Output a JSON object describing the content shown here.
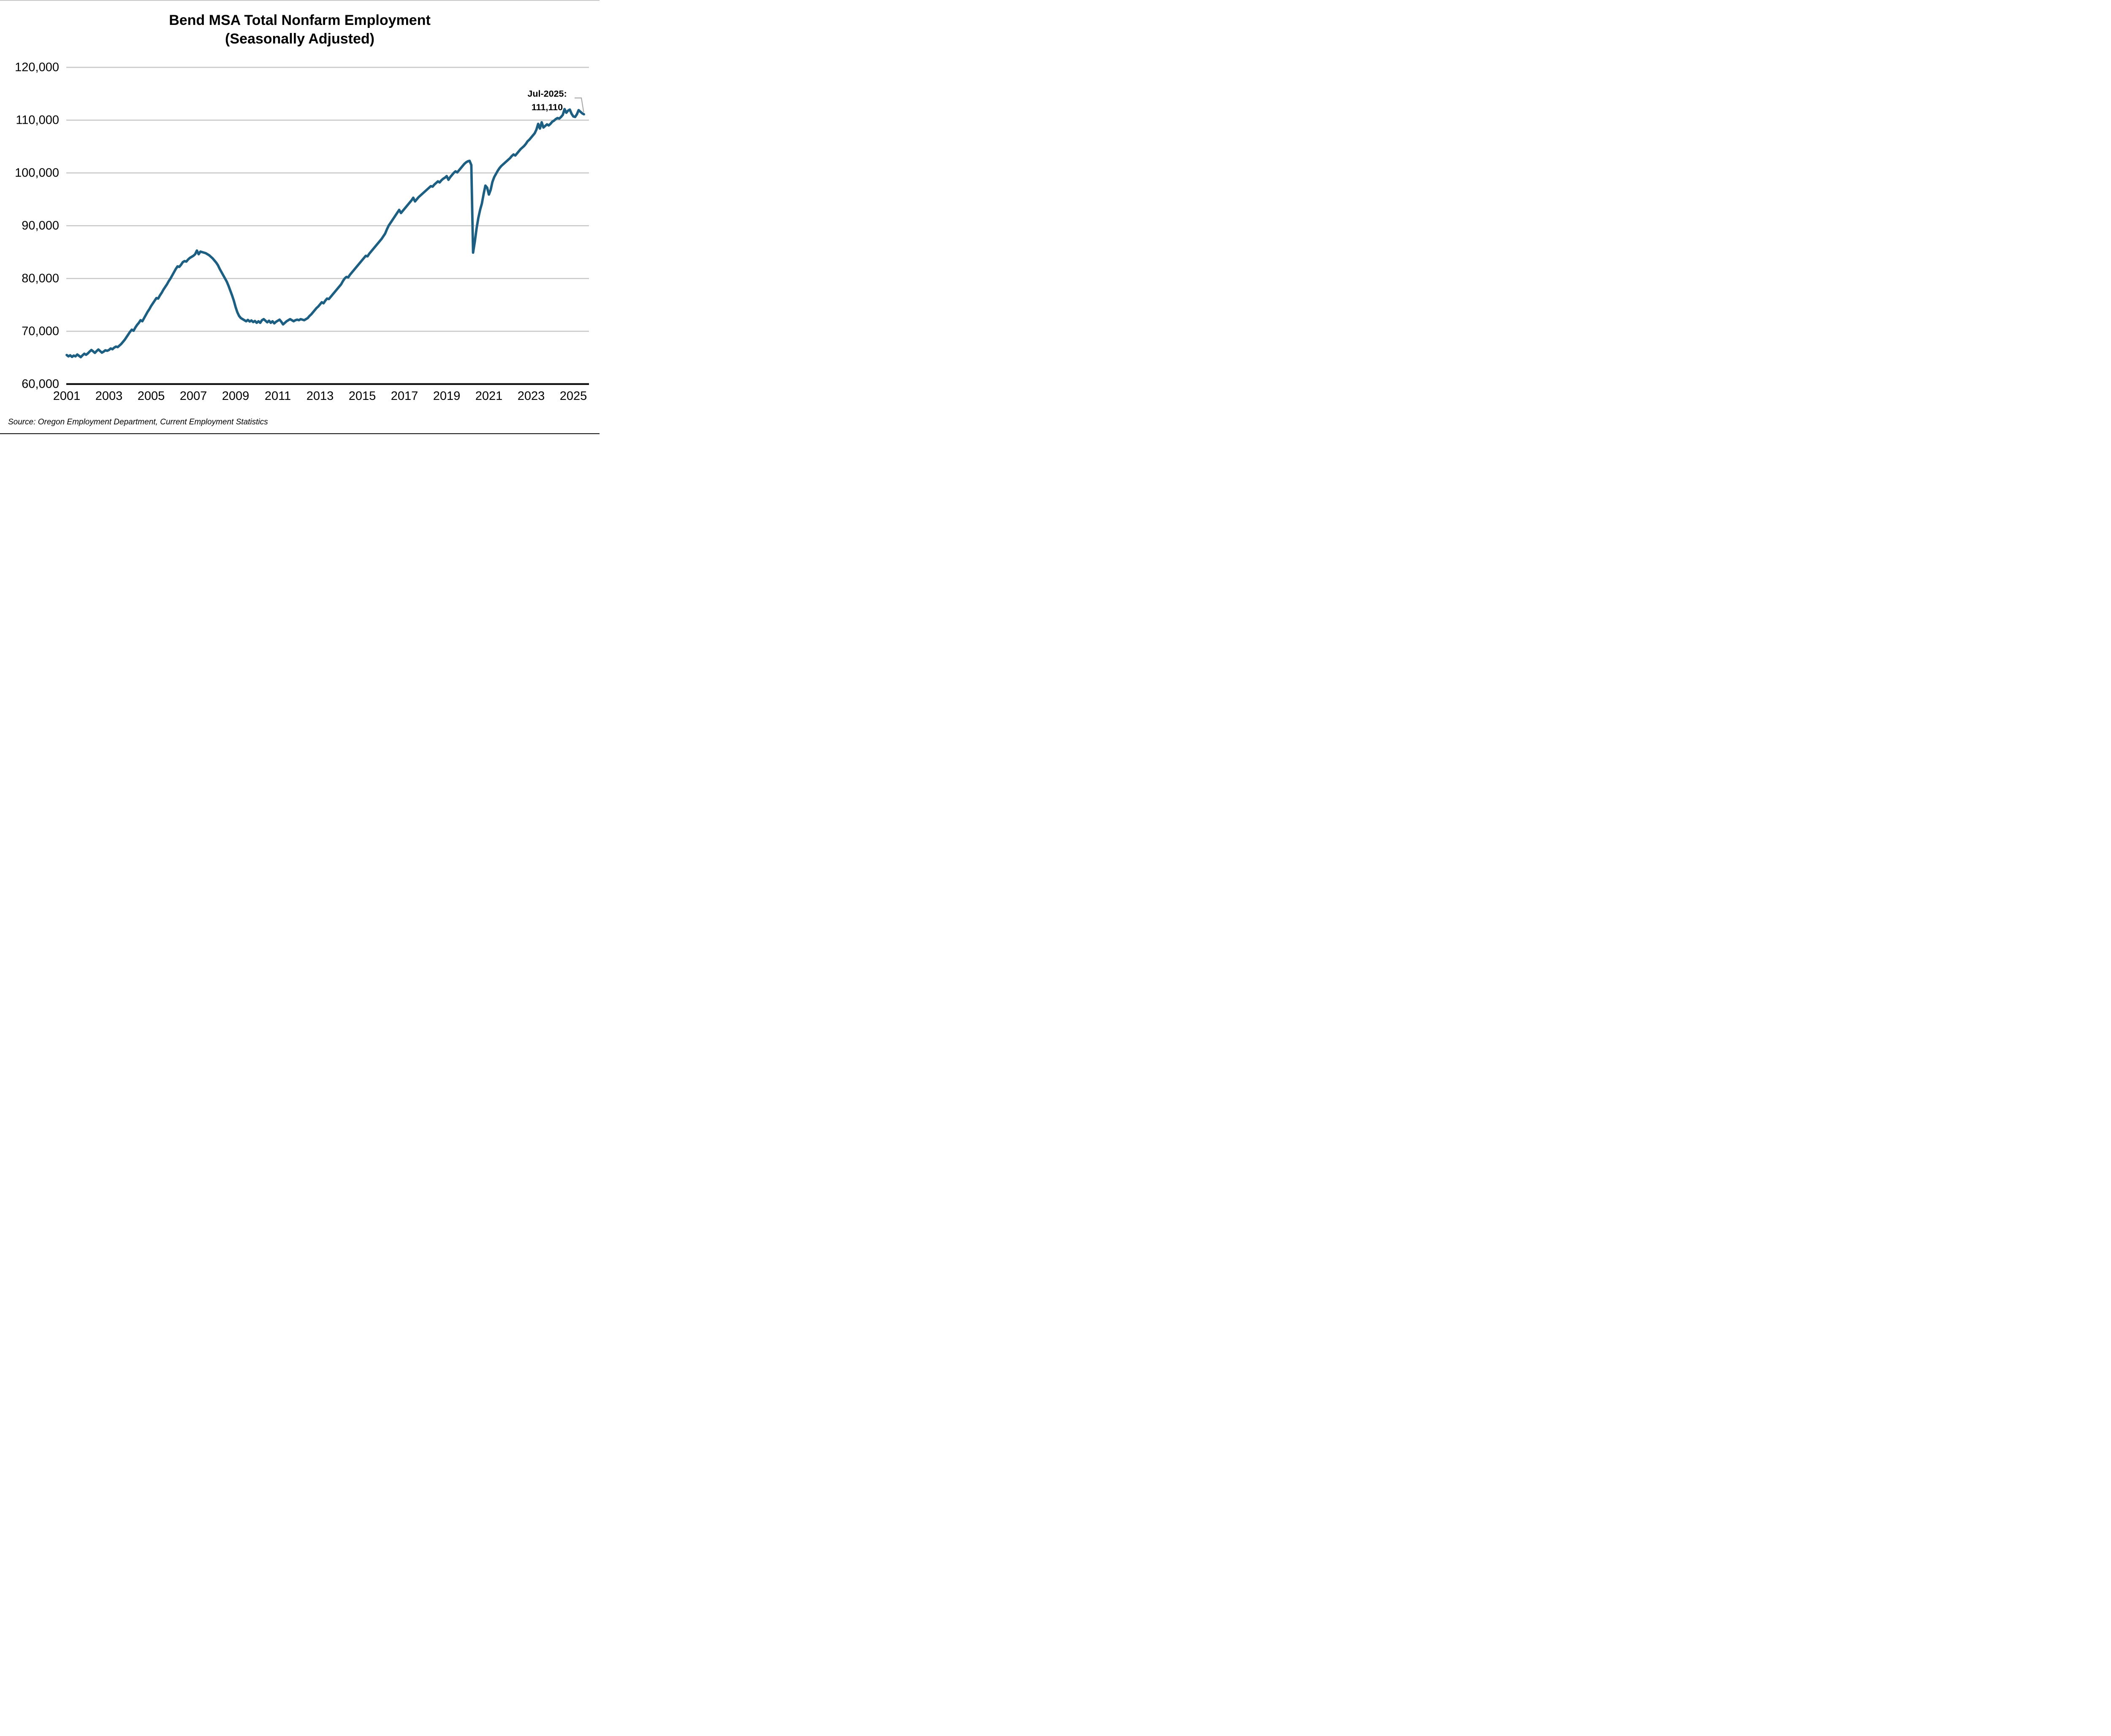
{
  "header": {
    "title_line1": "Bend MSA Total Nonfarm Employment",
    "title_line2": "(Seasonally Adjusted)"
  },
  "annotation": {
    "line1": "Jul-2025:",
    "line2": "111,110"
  },
  "source": {
    "text": "Source: Oregon Employment Department, Current Employment Statistics"
  },
  "axes": {
    "y_ticks": [
      "120,000",
      "110,000",
      "100,000",
      "90,000",
      "80,000",
      "70,000",
      "60,000"
    ],
    "y_tick_values": [
      120000,
      110000,
      100000,
      90000,
      80000,
      70000,
      60000
    ],
    "x_ticks": [
      "2001",
      "2003",
      "2005",
      "2007",
      "2009",
      "2011",
      "2013",
      "2015",
      "2017",
      "2019",
      "2021",
      "2023",
      "2025"
    ],
    "x_tick_years": [
      2001,
      2003,
      2005,
      2007,
      2009,
      2011,
      2013,
      2015,
      2017,
      2019,
      2021,
      2023,
      2025
    ]
  },
  "colors": {
    "line": "#1d5f82",
    "gridline": "#c6c6c6",
    "axis": "#000000",
    "leader": "#a8a8a8",
    "text": "#000000"
  },
  "chart_data": {
    "type": "line",
    "title": "Bend MSA Total Nonfarm Employment (Seasonally Adjusted)",
    "xlabel": "",
    "ylabel": "",
    "series_name": "Total nonfarm employment, seasonally adjusted",
    "frequency": "monthly",
    "x_start_year": 2001,
    "x_start_month": 1,
    "x_end_year": 2025,
    "x_end_month": 7,
    "xlim": [
      2001,
      2025.75
    ],
    "ylim": [
      60000,
      120000
    ],
    "grid": "horizontal",
    "legend": "none",
    "last_point_label": "Jul-2025: 111,110",
    "last_point_value": 111110,
    "values": [
      65500,
      65250,
      65450,
      65150,
      65400,
      65250,
      65600,
      65350,
      65100,
      65450,
      65750,
      65550,
      65800,
      66150,
      66450,
      66200,
      65900,
      66250,
      66550,
      66250,
      65950,
      66150,
      66400,
      66300,
      66450,
      66750,
      66600,
      66900,
      67100,
      67000,
      67300,
      67600,
      68000,
      68400,
      68900,
      69400,
      69900,
      70300,
      70100,
      70700,
      71200,
      71600,
      72100,
      71900,
      72500,
      73100,
      73700,
      74200,
      74800,
      75300,
      75800,
      76300,
      76200,
      76800,
      77300,
      77900,
      78400,
      78900,
      79500,
      80000,
      80600,
      81200,
      81800,
      82300,
      82200,
      82600,
      83100,
      83300,
      83200,
      83600,
      83900,
      84100,
      84300,
      84600,
      85300,
      84600,
      85100,
      85000,
      84900,
      84800,
      84600,
      84400,
      84100,
      83800,
      83400,
      83000,
      82500,
      81800,
      81200,
      80600,
      80000,
      79400,
      78600,
      77700,
      76800,
      75800,
      74600,
      73600,
      72900,
      72500,
      72300,
      72100,
      71900,
      72150,
      71850,
      72050,
      71750,
      71950,
      71600,
      71900,
      71600,
      72100,
      72300,
      72000,
      71700,
      72000,
      71600,
      71900,
      71500,
      71800,
      72000,
      72200,
      71800,
      71300,
      71600,
      71900,
      72100,
      72300,
      72100,
      71900,
      72100,
      72200,
      72100,
      72300,
      72200,
      72100,
      72300,
      72500,
      72900,
      73200,
      73600,
      74000,
      74400,
      74700,
      75100,
      75500,
      75300,
      75800,
      76200,
      76100,
      76500,
      76900,
      77300,
      77700,
      78100,
      78500,
      78900,
      79500,
      80000,
      80300,
      80200,
      80700,
      81100,
      81500,
      81900,
      82300,
      82700,
      83100,
      83500,
      83900,
      84300,
      84200,
      84700,
      85100,
      85500,
      85900,
      86300,
      86700,
      87100,
      87500,
      88000,
      88500,
      89300,
      90000,
      90500,
      91000,
      91500,
      92000,
      92500,
      93000,
      92400,
      92800,
      93200,
      93600,
      94000,
      94400,
      94800,
      95300,
      94600,
      95000,
      95400,
      95700,
      96000,
      96300,
      96600,
      96900,
      97200,
      97500,
      97400,
      97800,
      98100,
      98400,
      98200,
      98600,
      98900,
      99100,
      99400,
      98700,
      99200,
      99600,
      100000,
      100300,
      100100,
      100500,
      100900,
      101300,
      101700,
      102000,
      102200,
      102300,
      101500,
      84900,
      87000,
      89500,
      91500,
      93000,
      94200,
      96000,
      97600,
      97200,
      95900,
      96800,
      98300,
      99200,
      99800,
      100400,
      100900,
      101300,
      101600,
      101900,
      102200,
      102500,
      102800,
      103200,
      103500,
      103300,
      103700,
      104100,
      104500,
      104800,
      105100,
      105500,
      106000,
      106300,
      106700,
      107100,
      107500,
      108200,
      109300,
      108400,
      109600,
      108600,
      108900,
      109200,
      109000,
      109300,
      109700,
      109900,
      110200,
      110400,
      110300,
      110600,
      111000,
      112100,
      111400,
      111800,
      112000,
      111200,
      110700,
      110600,
      111100,
      111900,
      111600,
      111300,
      111110
    ]
  }
}
